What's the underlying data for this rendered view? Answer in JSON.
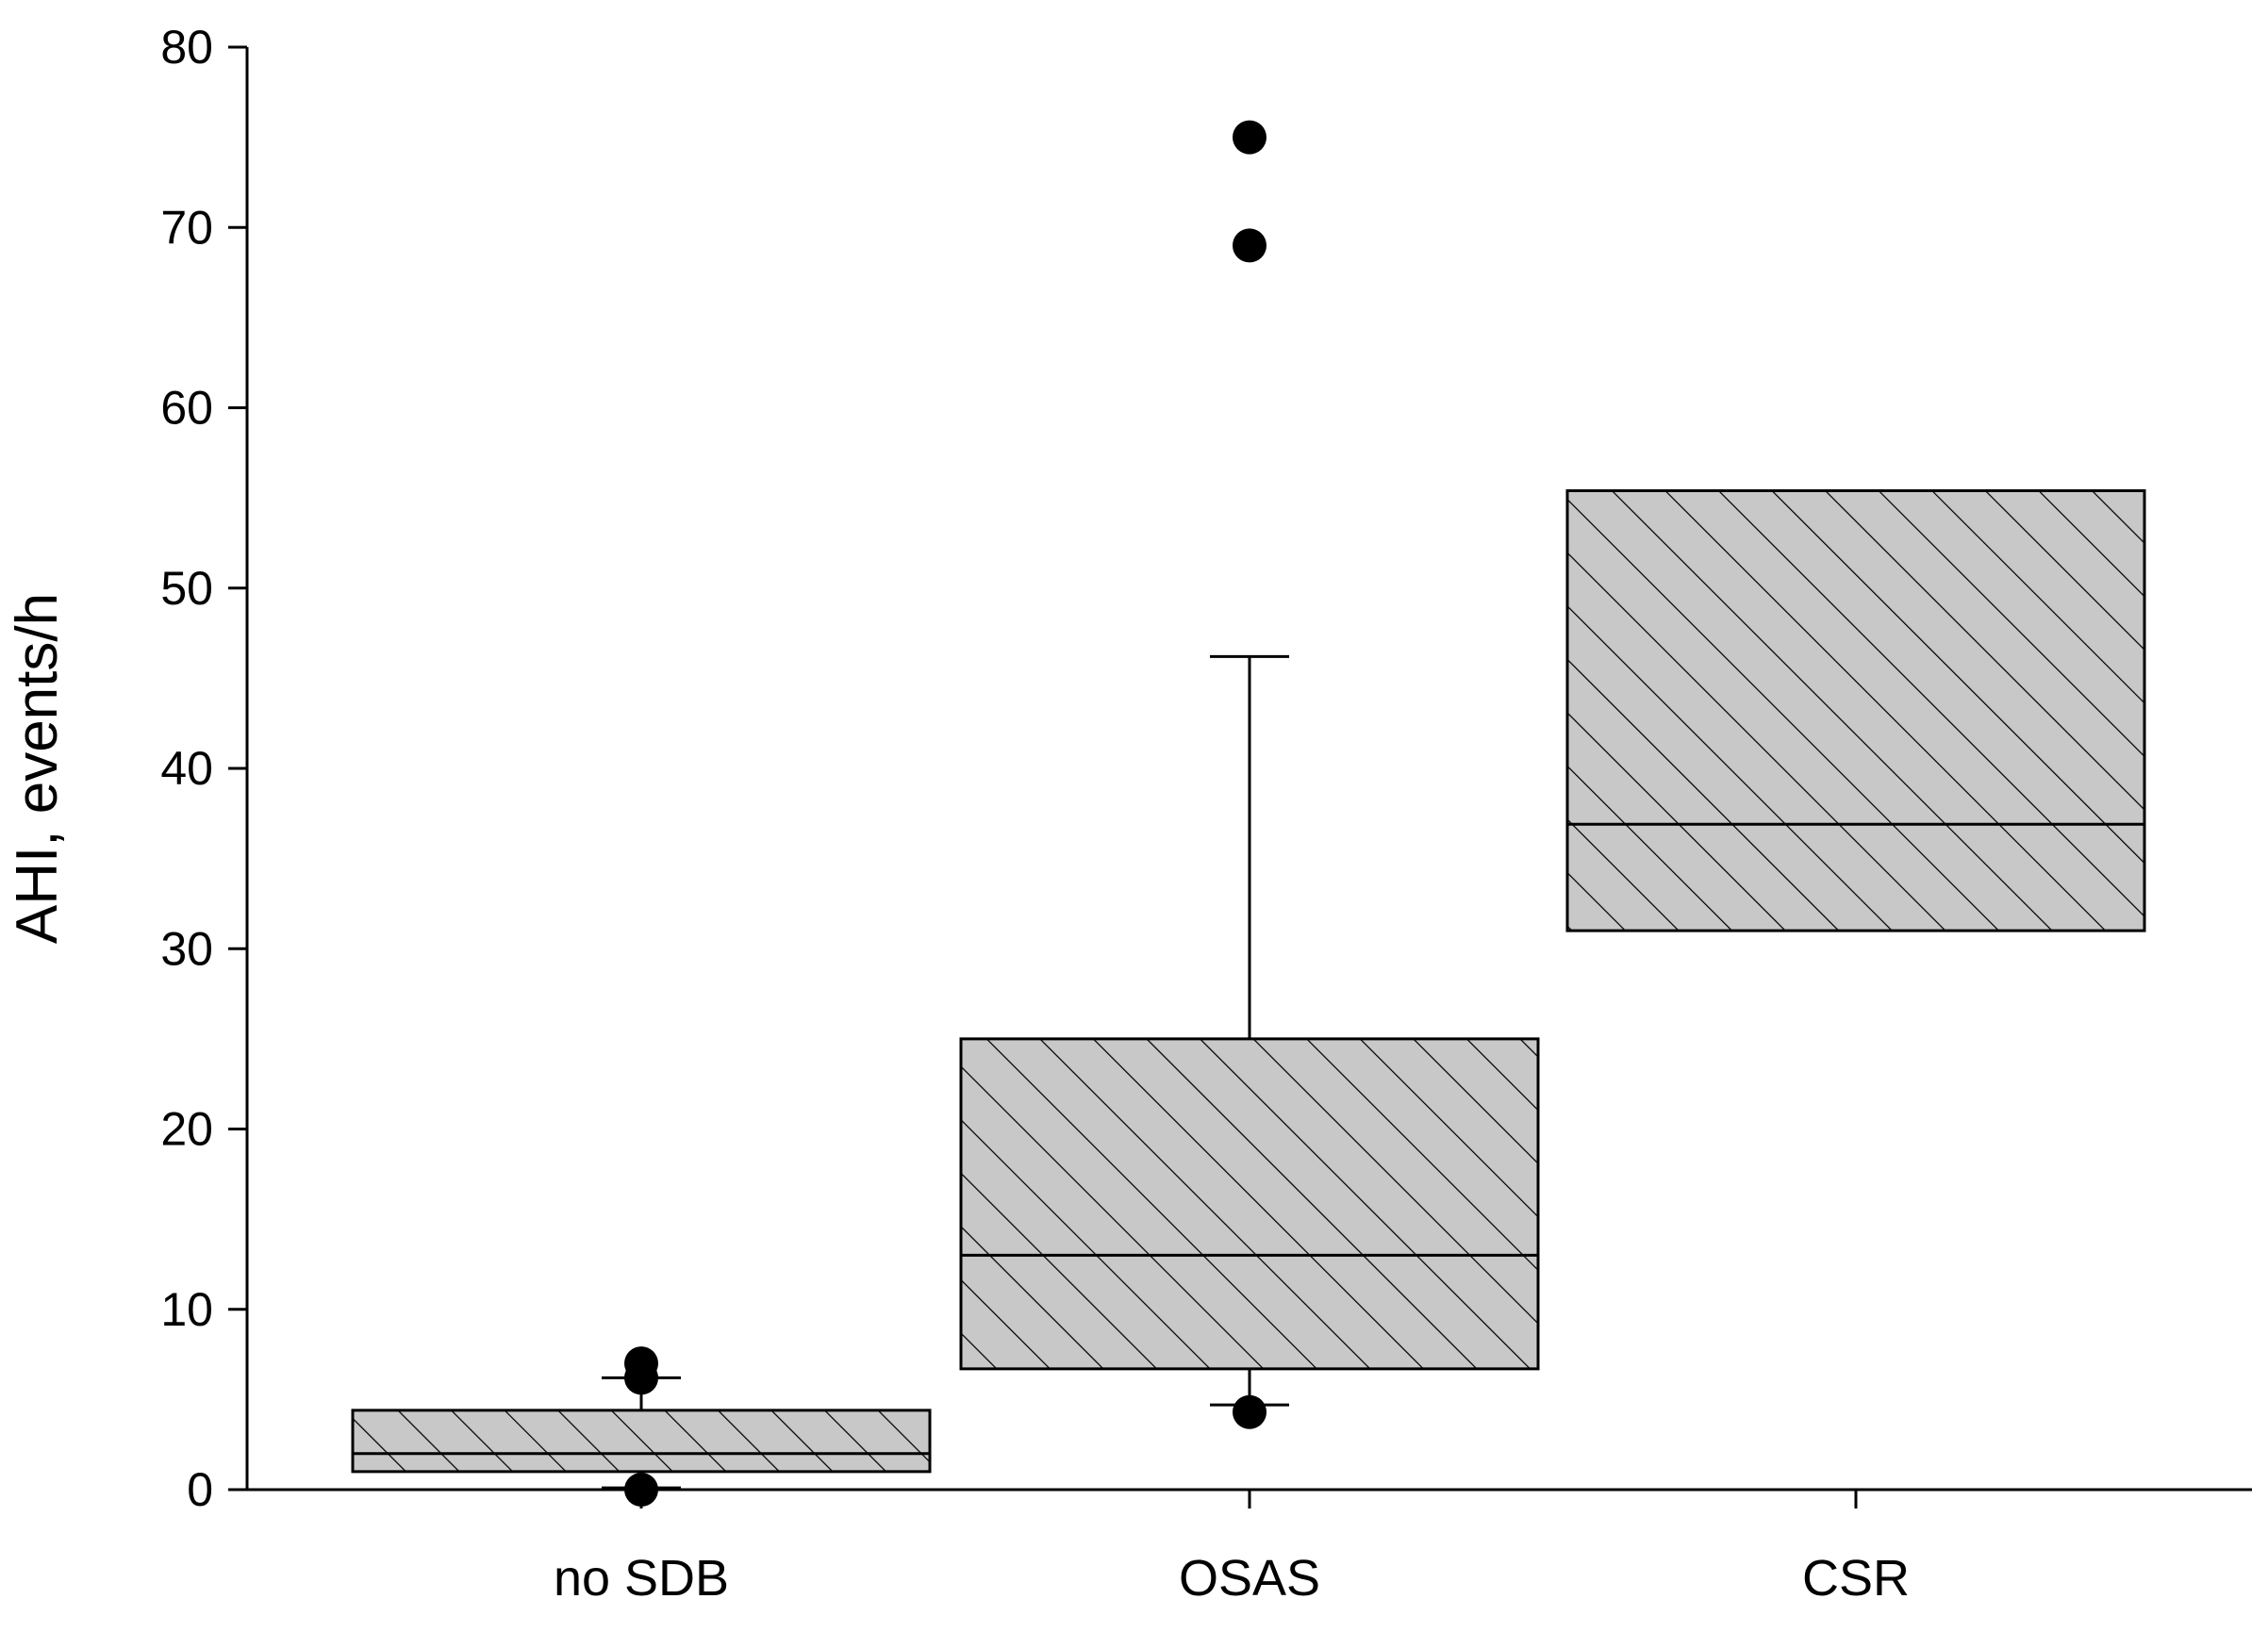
{
  "chart_data": {
    "type": "box",
    "title": "",
    "xlabel": "",
    "ylabel": "AHI, events/h",
    "ylim": [
      0,
      80
    ],
    "yticks": [
      0,
      10,
      20,
      30,
      40,
      50,
      60,
      70,
      80
    ],
    "ytick_labels": [
      "0",
      "10",
      "20",
      "30",
      "40",
      "50",
      "60",
      "70",
      "80"
    ],
    "categories": [
      "no SDB",
      "OSAS",
      "CSR"
    ],
    "grid": false,
    "legend": "none",
    "fill_color": "#c8c8c8",
    "line_color": "#000000",
    "boxes": [
      {
        "category": "no SDB",
        "q1": 1.0,
        "median": 2.0,
        "q3": 4.4,
        "whisker_low": 0.1,
        "whisker_high": 6.2,
        "outliers": [
          7.0,
          6.2,
          0.0
        ]
      },
      {
        "category": "OSAS",
        "q1": 6.7,
        "median": 13.0,
        "q3": 25.0,
        "whisker_low": 4.7,
        "whisker_high": 46.2,
        "outliers": [
          75.0,
          69.0,
          4.3
        ]
      },
      {
        "category": "CSR",
        "q1": 31.0,
        "median": 36.9,
        "q3": 55.4,
        "whisker_low": null,
        "whisker_high": null,
        "outliers": []
      }
    ]
  }
}
